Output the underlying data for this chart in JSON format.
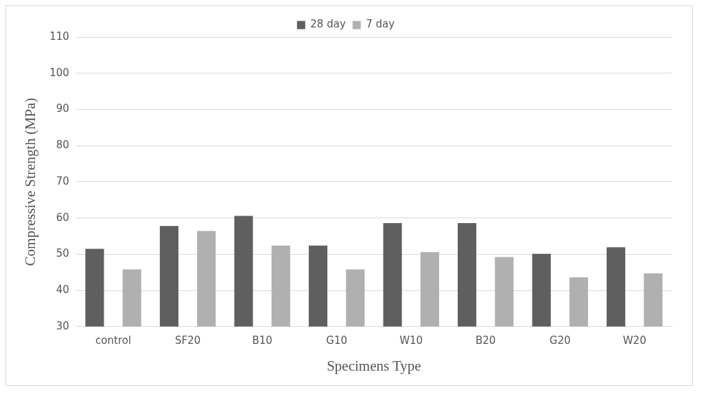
{
  "chart_data": {
    "type": "bar",
    "xlabel": "Specimens Type",
    "ylabel": "Compressive Strength (MPa)",
    "categories": [
      "control",
      "SF20",
      "B10",
      "G10",
      "W10",
      "B20",
      "G20",
      "W20"
    ],
    "series": [
      {
        "name": "28 day",
        "color": "#5f5f5f",
        "values": [
          51.5,
          57.8,
          60.6,
          52.4,
          58.6,
          58.6,
          50.1,
          51.9
        ]
      },
      {
        "name": "7 day",
        "color": "#b0b0b0",
        "values": [
          45.8,
          56.4,
          52.4,
          45.8,
          50.6,
          49.2,
          43.6,
          44.7
        ]
      }
    ],
    "ylim": [
      30,
      110
    ],
    "yticks": [
      30,
      40,
      50,
      60,
      70,
      80,
      90,
      100,
      110
    ],
    "grid": "y",
    "legend": "top"
  }
}
